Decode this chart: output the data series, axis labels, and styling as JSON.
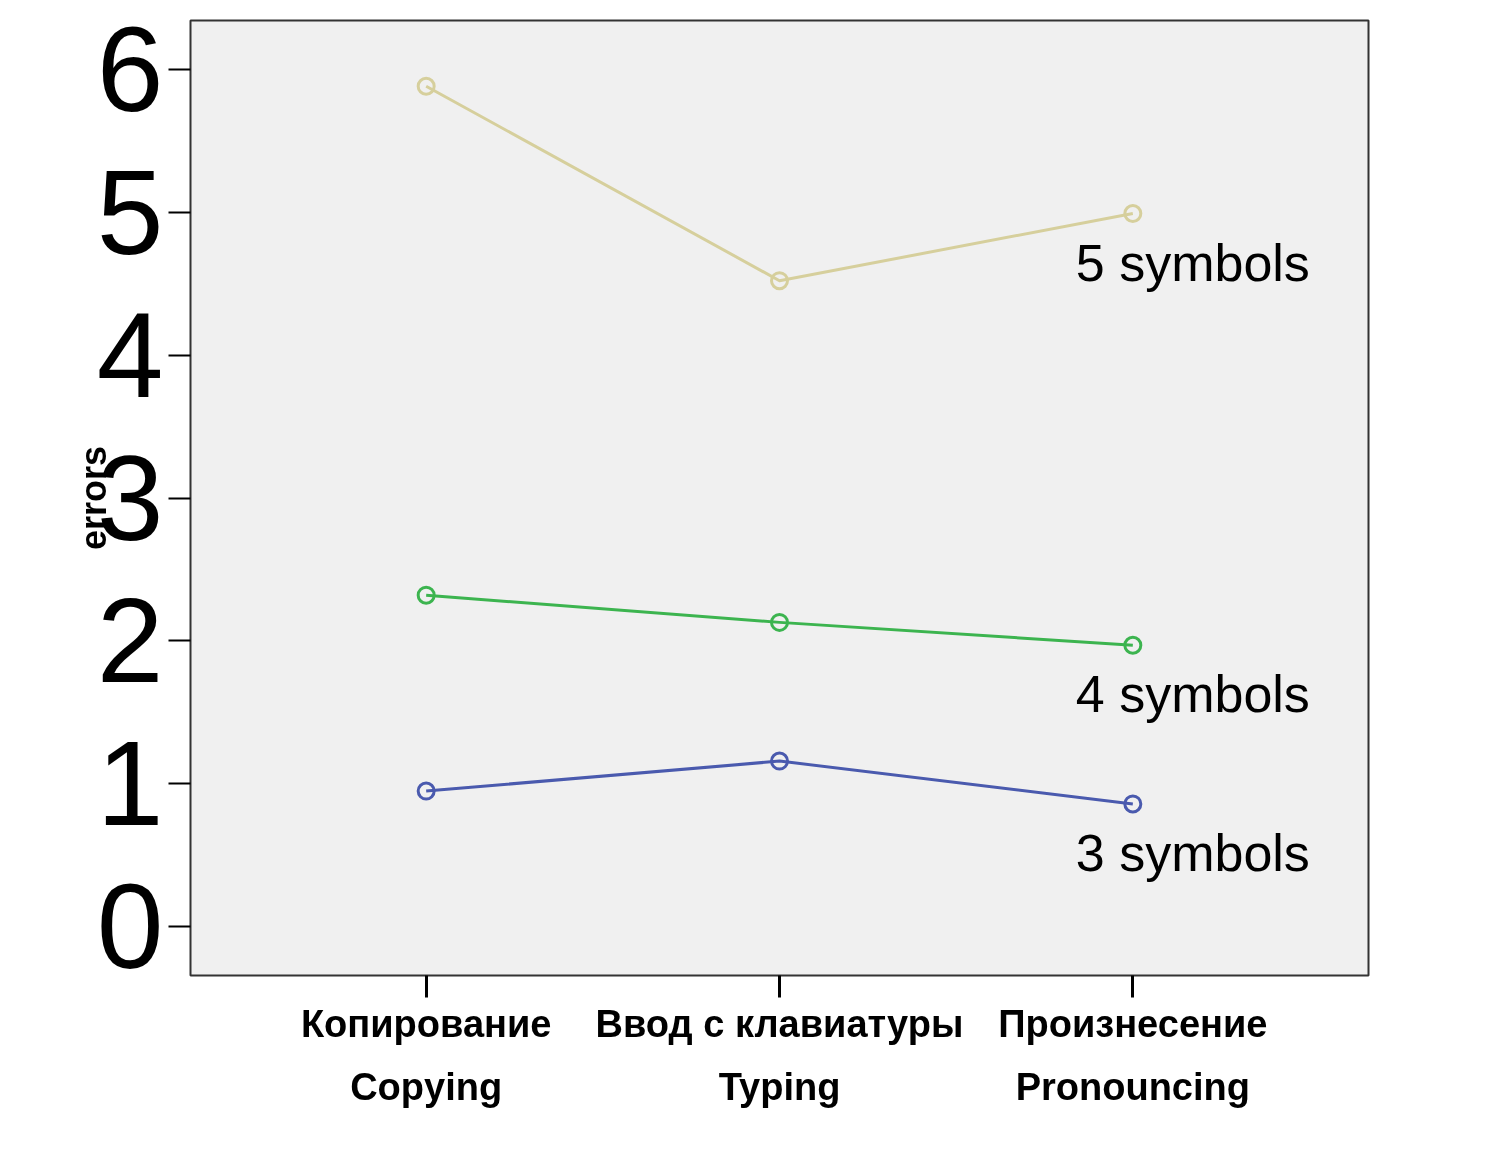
{
  "chart_data": {
    "type": "line",
    "ylabel": "errors",
    "categories": [
      "Копирование\nCopying",
      "Ввод с клавиатуры\nTyping",
      "Произнесение\nPronouncing"
    ],
    "series": [
      {
        "name": "5 symbols",
        "color": "#d6cf9c",
        "values": [
          5.88,
          4.52,
          4.99
        ]
      },
      {
        "name": "4 symbols",
        "color": "#3cb44f",
        "values": [
          2.32,
          2.13,
          1.97
        ]
      },
      {
        "name": "3 symbols",
        "color": "#4a5aae",
        "values": [
          0.95,
          1.16,
          0.86
        ]
      }
    ],
    "ylim": [
      -0.34,
      6.34
    ],
    "yticks": [
      0,
      1,
      2,
      3,
      4,
      5,
      6
    ],
    "grid": false,
    "marker": "circle",
    "line_style": "solid"
  }
}
